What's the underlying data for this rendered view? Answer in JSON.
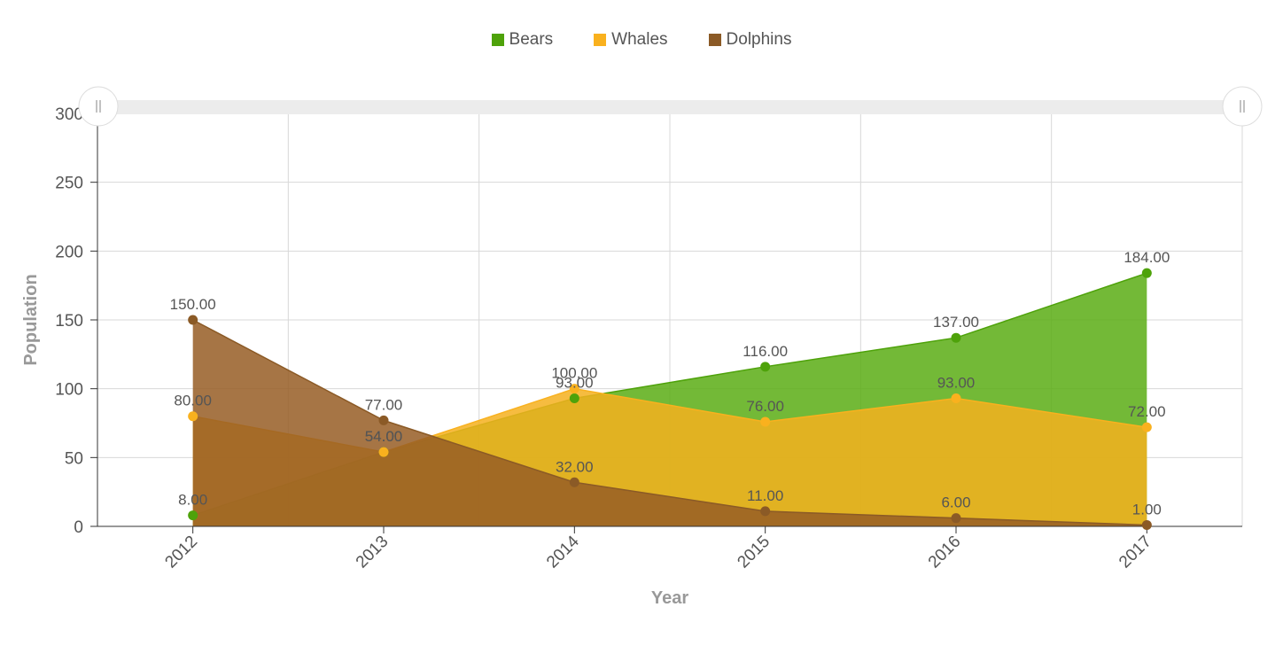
{
  "chart_data": {
    "type": "area",
    "categories": [
      "2012",
      "2013",
      "2014",
      "2015",
      "2016",
      "2017"
    ],
    "series": [
      {
        "name": "Bears",
        "color": "#4ea20a",
        "fill": "#5aad14",
        "values": [
          8,
          54,
          93,
          116,
          137,
          184
        ],
        "labels": [
          "8.00",
          "54.00",
          "93.00",
          "116.00",
          "137.00",
          "184.00"
        ]
      },
      {
        "name": "Whales",
        "color": "#f9b11e",
        "fill": "#f5b01f",
        "values": [
          80,
          54,
          100,
          76,
          93,
          72
        ],
        "labels": [
          "80.00",
          "54.00",
          "100.00",
          "76.00",
          "93.00",
          "72.00"
        ]
      },
      {
        "name": "Dolphins",
        "color": "#8b5a26",
        "fill": "#965d25",
        "values": [
          150,
          77,
          32,
          11,
          6,
          1
        ],
        "labels": [
          "150.00",
          "77.00",
          "32.00",
          "11.00",
          "6.00",
          "1.00"
        ]
      }
    ],
    "xlabel": "Year",
    "ylabel": "Population",
    "ylim": [
      0,
      300
    ],
    "yticks": [
      "0",
      "50",
      "100",
      "150",
      "200",
      "250",
      "300"
    ],
    "grid": true,
    "legend_position": "top-center"
  },
  "zoom_slider": {
    "left_handle_icon": "grip-lines-icon",
    "right_handle_icon": "grip-lines-icon"
  }
}
